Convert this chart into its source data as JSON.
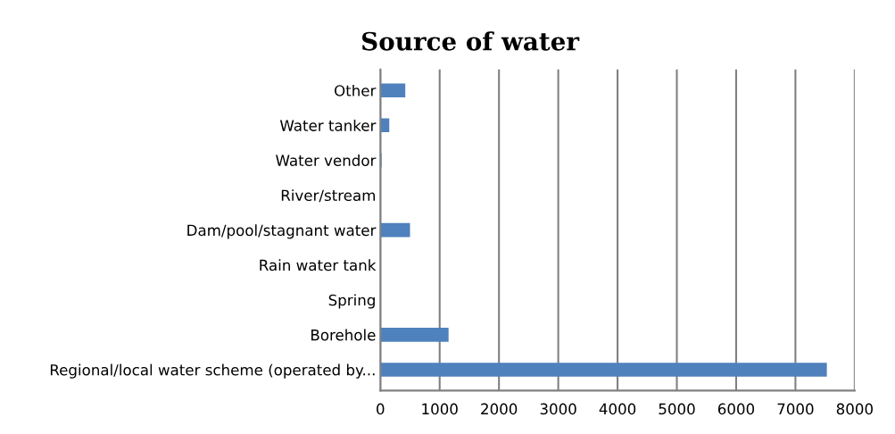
{
  "chart_data": {
    "type": "bar",
    "orientation": "horizontal",
    "title": "Source of water",
    "categories": [
      "Other",
      "Water tanker",
      "Water vendor",
      "River/stream",
      "Dam/pool/stagnant water",
      "Rain water tank",
      "Spring",
      "Borehole",
      "Regional/local water scheme (operated by..."
    ],
    "values": [
      420,
      150,
      20,
      0,
      500,
      0,
      0,
      1150,
      7530
    ],
    "color": "#4f81bd",
    "xlim": [
      0,
      8000
    ],
    "xticks": [
      0,
      1000,
      2000,
      3000,
      4000,
      5000,
      6000,
      7000,
      8000
    ],
    "grid": "x"
  }
}
